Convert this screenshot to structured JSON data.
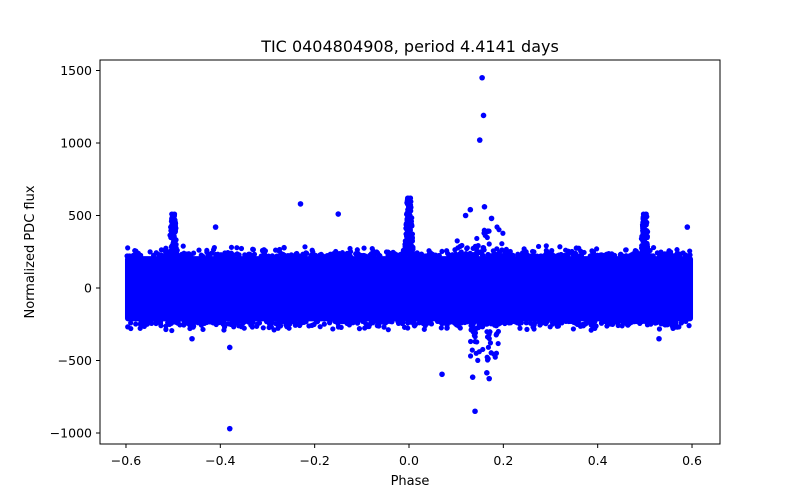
{
  "chart_data": {
    "type": "scatter",
    "title": "TIC 0404804908, period 4.4141 days",
    "xlabel": "Phase",
    "ylabel": "Normalized PDC flux",
    "xlim": [
      -0.65,
      0.66
    ],
    "ylim": [
      -1080,
      1580
    ],
    "xticks": [
      -0.6,
      -0.4,
      -0.2,
      0.0,
      0.2,
      0.4,
      0.6
    ],
    "xtick_labels": [
      "−0.6",
      "−0.4",
      "−0.2",
      "0.0",
      "0.2",
      "0.4",
      "0.6"
    ],
    "yticks": [
      -1000,
      -500,
      0,
      500,
      1000,
      1500
    ],
    "ytick_labels": [
      "−1000",
      "−500",
      "0",
      "500",
      "1000",
      "1500"
    ],
    "grid": false,
    "marker_color": "#0000ff",
    "band": {
      "x_range": [
        -0.6,
        0.6
      ],
      "typical_range": [
        -230,
        220
      ],
      "envelope": [
        -300,
        300
      ],
      "description": "dense band of points centered on 0"
    },
    "peaks": [
      {
        "x": -0.5,
        "y_max": 510
      },
      {
        "x": 0.0,
        "y_max": 620
      },
      {
        "x": 0.5,
        "y_max": 510
      }
    ],
    "outliers": [
      {
        "x": 0.155,
        "y": 1450
      },
      {
        "x": 0.158,
        "y": 1190
      },
      {
        "x": 0.15,
        "y": 1020
      },
      {
        "x": -0.23,
        "y": 580
      },
      {
        "x": -0.41,
        "y": 420
      },
      {
        "x": 0.59,
        "y": 420
      },
      {
        "x": -0.38,
        "y": -410
      },
      {
        "x": -0.38,
        "y": -970
      },
      {
        "x": 0.07,
        "y": -595
      },
      {
        "x": 0.135,
        "y": -615
      },
      {
        "x": 0.14,
        "y": -850
      },
      {
        "x": 0.165,
        "y": -585
      },
      {
        "x": 0.17,
        "y": -625
      },
      {
        "x": 0.13,
        "y": 540
      },
      {
        "x": 0.16,
        "y": 560
      },
      {
        "x": 0.175,
        "y": 480
      },
      {
        "x": 0.12,
        "y": 500
      },
      {
        "x": -0.15,
        "y": 510
      },
      {
        "x": -0.46,
        "y": -350
      },
      {
        "x": 0.53,
        "y": -350
      }
    ]
  }
}
